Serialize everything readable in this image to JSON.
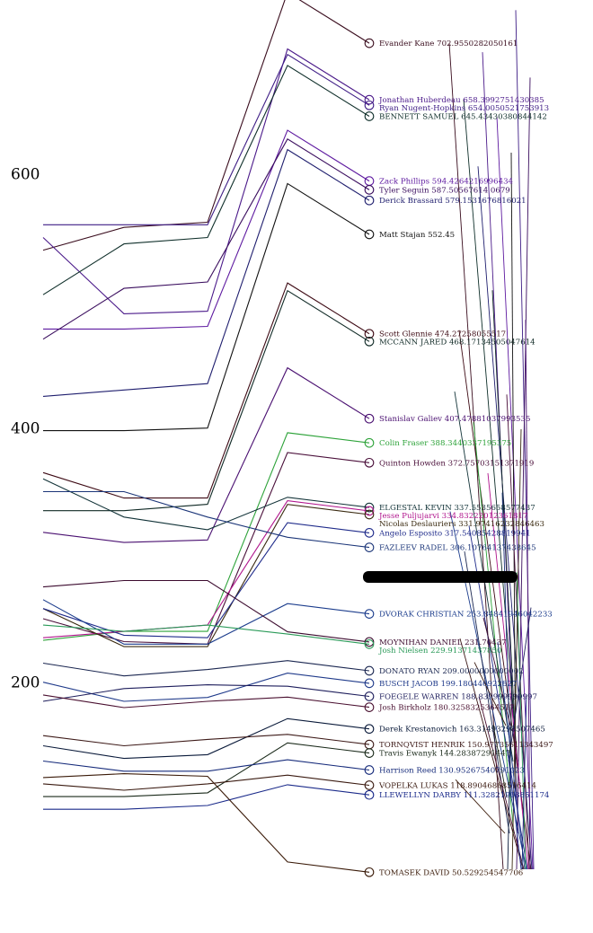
{
  "chart_data": {
    "type": "line",
    "title": "",
    "xlabel": "",
    "ylabel": "",
    "ylim": [
      10,
      680
    ],
    "y_ticks": [
      200,
      400,
      600
    ],
    "grid": false,
    "legend": "labels at line ends",
    "series": [
      {
        "label": "Evander Kane 702.9550282050161",
        "color": "#3a0d1e",
        "values": [
          540,
          558,
          562,
          702.96
        ]
      },
      {
        "label": "Jonathan Huberdeau 658.3992751430385",
        "color": "#4b1a8a",
        "values": [
          550,
          490,
          492,
          658.4
        ]
      },
      {
        "label": "Ryan Nugent-Hopkins 654.0050521753913",
        "color": "#3f1e86",
        "values": [
          560,
          560,
          560,
          654.01
        ]
      },
      {
        "label": "BENNETT SAMUEL 645.43430380844142",
        "color": "#0f2f2a",
        "values": [
          505,
          545,
          550,
          645.43
        ]
      },
      {
        "label": "Zack Phillips 594.4264216996434",
        "color": "#5e1aa0",
        "values": [
          478,
          478,
          480,
          594.43
        ]
      },
      {
        "label": "Tyler Seguin 587.50567614 0679",
        "color": "#3a0d5e",
        "values": [
          470,
          510,
          515,
          587.51
        ]
      },
      {
        "label": "Derick Brassard 579.1531676816021",
        "color": "#1f1e6e",
        "values": [
          425,
          430,
          435,
          579.15
        ]
      },
      {
        "label": "Matt Stajan 552.45",
        "color": "#111111",
        "values": [
          398,
          398,
          400,
          552.45
        ]
      },
      {
        "label": "Scott Glennie 474.27258055517",
        "color": "#3d0a14",
        "values": [
          365,
          345,
          345,
          474.27
        ]
      },
      {
        "label": "MCCANN JARED 468.17134505047614",
        "color": "#102a26",
        "values": [
          335,
          335,
          340,
          468.17
        ]
      },
      {
        "label": "Stanislav Galiev 407.47881037993535",
        "color": "#4a1071",
        "values": [
          318,
          310,
          312,
          407.48
        ]
      },
      {
        "label": "Colin Fraser 388.3440337195375",
        "color": "#2ea33a",
        "values": [
          233,
          240,
          240,
          388.34
        ]
      },
      {
        "label": "Quinton Howden 372.75703151371919",
        "color": "#4a0f3a",
        "values": [
          250,
          232,
          230,
          372.76
        ]
      },
      {
        "label": "ELGESTAL KEVIN 337.5535658577437",
        "color": "#123338",
        "values": [
          360,
          330,
          320,
          337.55
        ]
      },
      {
        "label": "Jesse Puljujarvi 334.83222012361817",
        "color": "#b0148c",
        "values": [
          235,
          240,
          245,
          334.83
        ]
      },
      {
        "label": "Nicolas Deslauriers 331.97416232846463",
        "color": "#3a2a10",
        "values": [
          258,
          228,
          228,
          331.97
        ]
      },
      {
        "label": "Angelo Esposito 317.54085428819941",
        "color": "#1e2a8a",
        "values": [
          258,
          237,
          235,
          317.54
        ]
      },
      {
        "label": "FAZLEEV RADEL 306.10764137438645",
        "color": "#1b3578",
        "values": [
          350,
          350,
          330,
          306.11
        ]
      },
      {
        "label": "DVORAK CHRISTIAN 253.84841946042233",
        "color": "#1b3c8c",
        "values": [
          265,
          230,
          230,
          253.85
        ]
      },
      {
        "label": "MOYNIHAN DANIEL 231.70437",
        "color": "#3b0a2e",
        "values": [
          275,
          280,
          280,
          231.7
        ]
      },
      {
        "label": "Josh Nielsen 229.91371437850",
        "color": "#2a9a58",
        "values": [
          245,
          240,
          245,
          229.91
        ]
      },
      {
        "label": "DONATO RYAN 209.0000000000002",
        "color": "#1a2650",
        "values": [
          215,
          205,
          210,
          209.0
        ]
      },
      {
        "label": "BUSCH JACOB 199.180446922827",
        "color": "#1f3a8a",
        "values": [
          200,
          185,
          188,
          199.18
        ]
      },
      {
        "label": "FOEGELE WARREN 188.839999999997",
        "color": "#1e1e5c",
        "values": [
          185,
          195,
          198,
          188.84
        ]
      },
      {
        "label": "Josh Birkholz 180.3258325364517",
        "color": "#4a1030",
        "values": [
          190,
          180,
          185,
          180.33
        ]
      },
      {
        "label": "Derek Krestanovich 163.31493298507465",
        "color": "#0a1a3a",
        "values": [
          150,
          140,
          143,
          163.31
        ]
      },
      {
        "label": "TORNQVIST HENRIK 150.97735611343497",
        "color": "#3d1a18",
        "values": [
          158,
          150,
          155,
          150.98
        ]
      },
      {
        "label": "Travis Ewanyk 144.28387291447",
        "color": "#1a2a1a",
        "values": [
          110,
          110,
          113,
          144.28
        ]
      },
      {
        "label": "Harrison Reed 130.95267540791023",
        "color": "#152a7a",
        "values": [
          138,
          130,
          130,
          130.95
        ]
      },
      {
        "label": "VOPELKA LUKAS 118.89046868516414",
        "color": "#3a1a10",
        "values": [
          120,
          115,
          120,
          118.89
        ]
      },
      {
        "label": "LLEWELLYN DARBY 111.32821903851174",
        "color": "#1a2a8a",
        "values": [
          100,
          100,
          103,
          111.33
        ]
      },
      {
        "label": "TOMASEK DAVID 50.529254547706",
        "color": "#3a1a08",
        "values": [
          125,
          128,
          126,
          50.53
        ]
      }
    ]
  },
  "redacted_label": {
    "color": "#000000"
  }
}
